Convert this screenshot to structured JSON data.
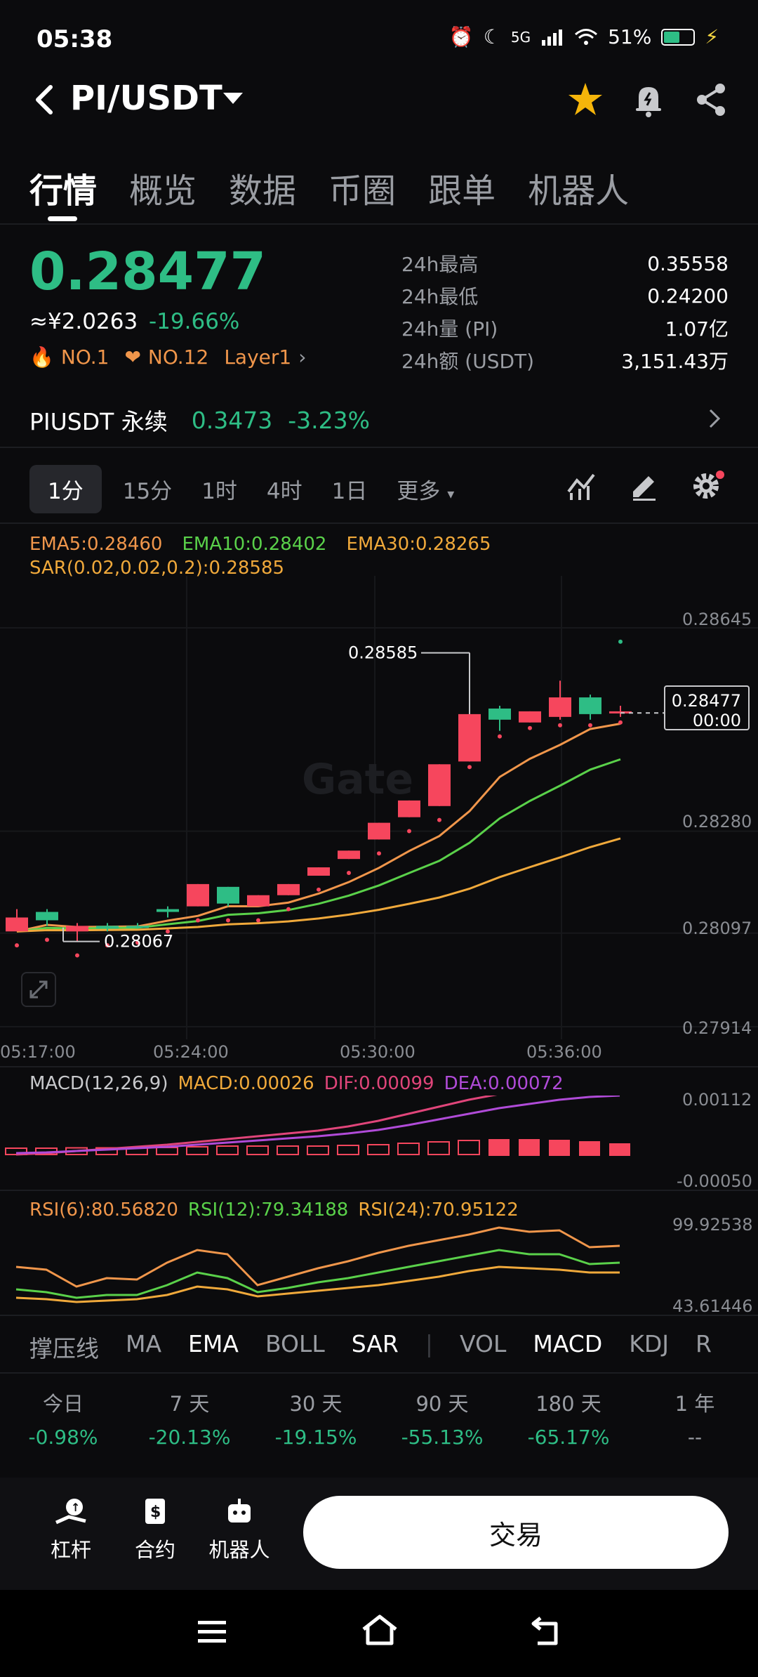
{
  "status_bar": {
    "time": "05:38",
    "network": "5G",
    "battery": "51%"
  },
  "header": {
    "pair": "PI/USDT"
  },
  "tabs": [
    "行情",
    "概览",
    "数据",
    "币圈",
    "跟单",
    "机器人"
  ],
  "price": {
    "last": "0.28477",
    "cny": "≈¥2.0263",
    "change": "-19.66%",
    "tags": [
      "NO.1",
      "NO.12",
      "Layer1"
    ]
  },
  "stats": [
    {
      "label": "24h最高",
      "value": "0.35558"
    },
    {
      "label": "24h最低",
      "value": "0.24200"
    },
    {
      "label": "24h量 (PI)",
      "value": "1.07亿"
    },
    {
      "label": "24h额 (USDT)",
      "value": "3,151.43万"
    }
  ],
  "perp": {
    "name": "PIUSDT 永续",
    "price": "0.3473",
    "change": "-3.23%"
  },
  "timeframes": {
    "selected": "1分",
    "others": [
      "15分",
      "1时",
      "4时",
      "1日"
    ],
    "more": "更多"
  },
  "chart": {
    "ema_legend": [
      "EMA5:0.28460",
      "EMA10:0.28402",
      "EMA30:0.28265"
    ],
    "sar_legend": "SAR(0.02,0.02,0.2):0.28585",
    "y_labels": [
      "0.28645",
      "0.28280",
      "0.28097",
      "0.27914"
    ],
    "x_labels": [
      "05:17:00",
      "05:24:00",
      "05:30:00",
      "05:36:00"
    ],
    "high_label": "0.28585",
    "low_label": "0.28067",
    "current_price": "0.28477",
    "current_time": "00:00",
    "watermark": "Gate"
  },
  "chart_data": {
    "type": "candlestick",
    "candles": [
      {
        "o": 0.2811,
        "h": 0.28125,
        "l": 0.28085,
        "c": 0.28085
      },
      {
        "o": 0.28105,
        "h": 0.28125,
        "l": 0.28095,
        "c": 0.2812
      },
      {
        "o": 0.28095,
        "h": 0.281,
        "l": 0.28067,
        "c": 0.28085
      },
      {
        "o": 0.2809,
        "h": 0.281,
        "l": 0.28085,
        "c": 0.28095
      },
      {
        "o": 0.28095,
        "h": 0.281,
        "l": 0.2809,
        "c": 0.28095
      },
      {
        "o": 0.2812,
        "h": 0.2813,
        "l": 0.2811,
        "c": 0.28125
      },
      {
        "o": 0.2817,
        "h": 0.2817,
        "l": 0.2813,
        "c": 0.2813
      },
      {
        "o": 0.28135,
        "h": 0.28165,
        "l": 0.2813,
        "c": 0.28165
      },
      {
        "o": 0.2815,
        "h": 0.2815,
        "l": 0.2813,
        "c": 0.2813
      },
      {
        "o": 0.2817,
        "h": 0.2817,
        "l": 0.2815,
        "c": 0.2815
      },
      {
        "o": 0.282,
        "h": 0.282,
        "l": 0.28185,
        "c": 0.28185
      },
      {
        "o": 0.2823,
        "h": 0.2823,
        "l": 0.28215,
        "c": 0.28215
      },
      {
        "o": 0.2828,
        "h": 0.2828,
        "l": 0.2825,
        "c": 0.2825
      },
      {
        "o": 0.2832,
        "h": 0.2832,
        "l": 0.2829,
        "c": 0.2829
      },
      {
        "o": 0.28385,
        "h": 0.28385,
        "l": 0.2831,
        "c": 0.2831
      },
      {
        "o": 0.28475,
        "h": 0.28585,
        "l": 0.2839,
        "c": 0.2839
      },
      {
        "o": 0.28465,
        "h": 0.2849,
        "l": 0.28445,
        "c": 0.28485
      },
      {
        "o": 0.2848,
        "h": 0.2848,
        "l": 0.2846,
        "c": 0.2846
      },
      {
        "o": 0.28505,
        "h": 0.28535,
        "l": 0.28465,
        "c": 0.2847
      },
      {
        "o": 0.28475,
        "h": 0.2851,
        "l": 0.28465,
        "c": 0.28505
      },
      {
        "o": 0.2848,
        "h": 0.2849,
        "l": 0.2847,
        "c": 0.28477
      }
    ],
    "ylim": [
      0.27914,
      0.28645
    ]
  },
  "macd": {
    "legend_title": "MACD(12,26,9)",
    "macd": "MACD:0.00026",
    "dif": "DIF:0.00099",
    "dea": "DEA:0.00072",
    "y_top": "0.00112",
    "y_bottom": "-0.00050"
  },
  "rsi": {
    "rsi6": "RSI(6):80.56820",
    "rsi12": "RSI(12):79.34188",
    "rsi24": "RSI(24):70.95122",
    "y_top": "99.92538",
    "y_bottom": "43.61446"
  },
  "indicators": [
    "撑压线",
    "MA",
    "EMA",
    "BOLL",
    "SAR",
    "VOL",
    "MACD",
    "KDJ",
    "R"
  ],
  "periods": [
    {
      "label": "今日",
      "value": "-0.98%"
    },
    {
      "label": "7 天",
      "value": "-20.13%"
    },
    {
      "label": "30 天",
      "value": "-19.15%"
    },
    {
      "label": "90 天",
      "value": "-55.13%"
    },
    {
      "label": "180 天",
      "value": "-65.17%"
    },
    {
      "label": "1 年",
      "value": "--"
    }
  ],
  "bottom": {
    "leverage": "杠杆",
    "futures": "合约",
    "bot": "机器人",
    "trade": "交易"
  },
  "colors": {
    "up": "#2ebd85",
    "down": "#f6465d",
    "ema5": "#f0964b",
    "ema10": "#5ad14a",
    "ema30": "#f0a93b"
  }
}
